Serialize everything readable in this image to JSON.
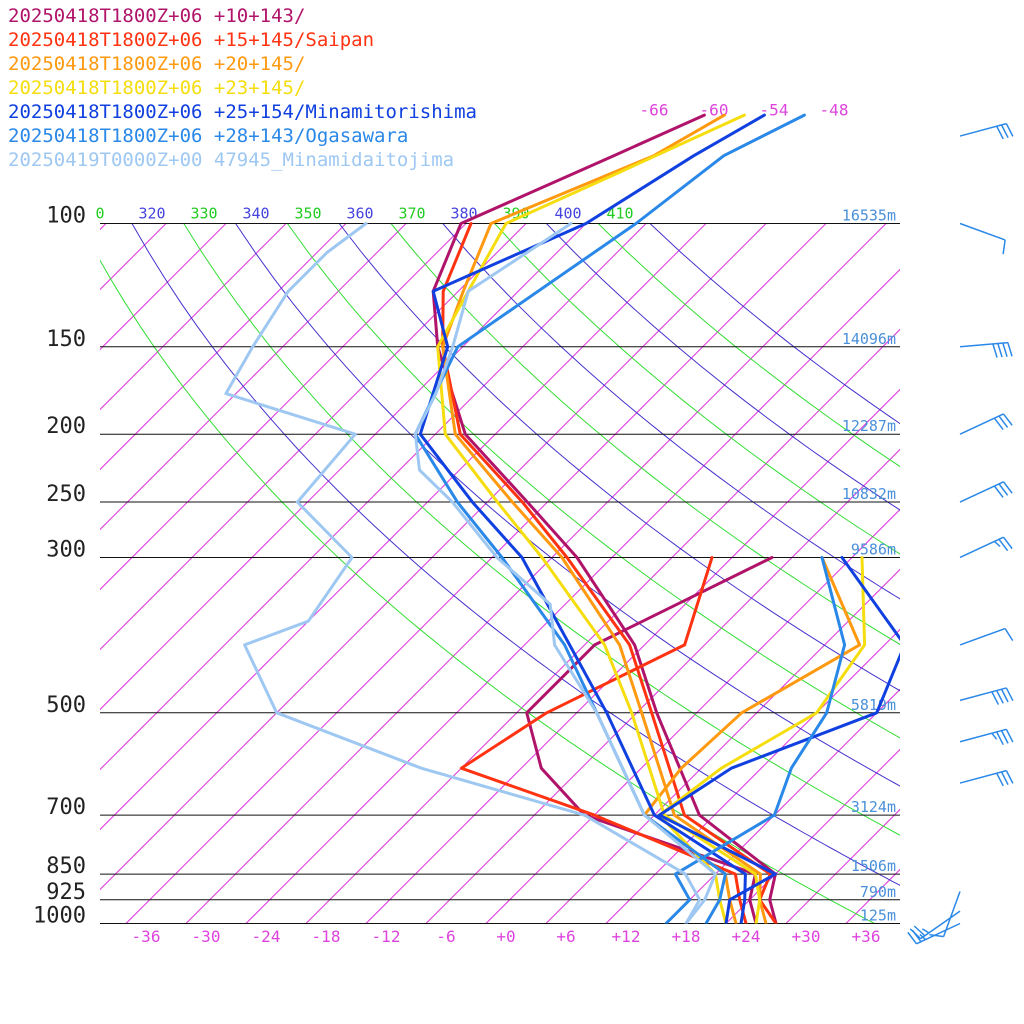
{
  "chart_data": {
    "type": "line",
    "subtype": "skew-T log-P sounding",
    "legend": [
      {
        "label": "20250418T1800Z+06 +10+143/",
        "color": "#b0146a"
      },
      {
        "label": "20250418T1800Z+06 +15+145/Saipan",
        "color": "#ff3311"
      },
      {
        "label": "20250418T1800Z+06 +20+145/",
        "color": "#ff9910"
      },
      {
        "label": "20250418T1800Z+06 +23+145/",
        "color": "#f5dd10"
      },
      {
        "label": "20250418T1800Z+06 +25+154/Minamitorishima",
        "color": "#1040e0"
      },
      {
        "label": "20250418T1800Z+06 +28+143/Ogasawara",
        "color": "#2a88e8"
      },
      {
        "label": "20250419T0000Z+00 47945_Minamidaitojima",
        "color": "#9ec8f2"
      }
    ],
    "pressure_levels": [
      {
        "p": 100,
        "label": "100",
        "height": "16535m"
      },
      {
        "p": 150,
        "label": "150",
        "height": "14096m"
      },
      {
        "p": 200,
        "label": "200",
        "height": "12287m"
      },
      {
        "p": 250,
        "label": "250",
        "height": "10832m"
      },
      {
        "p": 300,
        "label": "300",
        "height": "9586m"
      },
      {
        "p": 500,
        "label": "500",
        "height": "5819m"
      },
      {
        "p": 700,
        "label": "700",
        "height": "3124m"
      },
      {
        "p": 850,
        "label": "850",
        "height": "1506m"
      },
      {
        "p": 925,
        "label": "925",
        "height": "790m"
      },
      {
        "p": 1000,
        "label": "1000",
        "height": "125m"
      }
    ],
    "x_ticks": [
      "-36",
      "-30",
      "-24",
      "-18",
      "-12",
      "-6",
      "+0",
      "+6",
      "+12",
      "+18",
      "+24",
      "+30",
      "+36"
    ],
    "top_temp_labels": [
      "-66",
      "-60",
      "-54",
      "-48"
    ],
    "theta_labels": [
      {
        "text": "0",
        "color": "#22cc22"
      },
      {
        "text": "320",
        "color": "#4444dd"
      },
      {
        "text": "330",
        "color": "#22cc22"
      },
      {
        "text": "340",
        "color": "#4444dd"
      },
      {
        "text": "350",
        "color": "#22cc22"
      },
      {
        "text": "360",
        "color": "#4444dd"
      },
      {
        "text": "370",
        "color": "#22cc22"
      },
      {
        "text": "380",
        "color": "#4444dd"
      },
      {
        "text": "390",
        "color": "#22cc22"
      },
      {
        "text": "400",
        "color": "#4444dd"
      },
      {
        "text": "410",
        "color": "#22cc22"
      }
    ],
    "xlim": [
      -40,
      40
    ],
    "ylim_hPa": [
      1000,
      100
    ],
    "series": [
      {
        "legend": 0,
        "kind": "temperature",
        "points": [
          [
            1000,
            27
          ],
          [
            925,
            24
          ],
          [
            850,
            22
          ],
          [
            700,
            8.5
          ],
          [
            500,
            -6
          ],
          [
            400,
            -15
          ],
          [
            300,
            -29.5
          ],
          [
            250,
            -40
          ],
          [
            200,
            -53
          ],
          [
            150,
            -64.5
          ],
          [
            125,
            -70.5
          ],
          [
            100,
            -74.5
          ],
          [
            80,
            -66
          ],
          [
            70,
            -61
          ]
        ]
      },
      {
        "legend": 0,
        "kind": "dewpoint",
        "points": [
          [
            1000,
            25
          ],
          [
            925,
            22
          ],
          [
            850,
            20
          ],
          [
            700,
            -3
          ],
          [
            600,
            -12
          ],
          [
            500,
            -19
          ],
          [
            400,
            -19
          ],
          [
            300,
            -10
          ]
        ]
      },
      {
        "legend": 1,
        "kind": "temperature",
        "points": [
          [
            1000,
            27
          ],
          [
            925,
            23
          ],
          [
            850,
            21.5
          ],
          [
            700,
            7
          ],
          [
            500,
            -6.5
          ],
          [
            400,
            -15.5
          ],
          [
            300,
            -30.5
          ],
          [
            250,
            -40.5
          ],
          [
            200,
            -53.5
          ],
          [
            150,
            -64
          ],
          [
            125,
            -69.5
          ],
          [
            100,
            -73.5
          ]
        ]
      },
      {
        "legend": 1,
        "kind": "dewpoint",
        "points": [
          [
            1000,
            24
          ],
          [
            925,
            21
          ],
          [
            850,
            18
          ],
          [
            700,
            -2
          ],
          [
            600,
            -20
          ],
          [
            500,
            -17
          ],
          [
            400,
            -10
          ],
          [
            300,
            -16
          ]
        ]
      },
      {
        "legend": 2,
        "kind": "temperature",
        "points": [
          [
            1000,
            26
          ],
          [
            925,
            23
          ],
          [
            850,
            20.5
          ],
          [
            700,
            6
          ],
          [
            500,
            -7.5
          ],
          [
            400,
            -16.5
          ],
          [
            300,
            -31
          ],
          [
            250,
            -41.5
          ],
          [
            200,
            -54
          ],
          [
            150,
            -64
          ],
          [
            125,
            -67.5
          ],
          [
            100,
            -71.5
          ],
          [
            80,
            -62
          ],
          [
            70,
            -59
          ]
        ]
      },
      {
        "legend": 2,
        "kind": "dewpoint",
        "points": [
          [
            1000,
            23
          ],
          [
            925,
            20
          ],
          [
            850,
            17
          ],
          [
            700,
            3
          ],
          [
            600,
            2
          ],
          [
            500,
            2.5
          ],
          [
            400,
            7.5
          ],
          [
            300,
            -5
          ]
        ]
      },
      {
        "legend": 3,
        "kind": "temperature",
        "points": [
          [
            1000,
            25
          ],
          [
            925,
            23
          ],
          [
            850,
            20
          ],
          [
            700,
            5
          ],
          [
            500,
            -8.5
          ],
          [
            400,
            -18
          ],
          [
            300,
            -33
          ],
          [
            250,
            -43
          ],
          [
            200,
            -55
          ],
          [
            150,
            -64.5
          ],
          [
            125,
            -67
          ],
          [
            100,
            -70
          ],
          [
            85,
            -64
          ],
          [
            70,
            -57
          ]
        ]
      },
      {
        "legend": 3,
        "kind": "dewpoint",
        "points": [
          [
            1000,
            22
          ],
          [
            925,
            19
          ],
          [
            850,
            16
          ],
          [
            700,
            4.5
          ],
          [
            600,
            6
          ],
          [
            500,
            10
          ],
          [
            400,
            8
          ],
          [
            300,
            -1
          ]
        ]
      },
      {
        "legend": 4,
        "kind": "temperature",
        "points": [
          [
            1000,
            23.5
          ],
          [
            925,
            21.5
          ],
          [
            850,
            19
          ],
          [
            700,
            4
          ],
          [
            500,
            -11
          ],
          [
            400,
            -21.5
          ],
          [
            300,
            -35
          ],
          [
            250,
            -45.5
          ],
          [
            200,
            -57.5
          ],
          [
            150,
            -63.5
          ],
          [
            125,
            -70.5
          ],
          [
            100,
            -62
          ],
          [
            80,
            -58
          ],
          [
            70,
            -55
          ]
        ]
      },
      {
        "legend": 4,
        "kind": "dewpoint",
        "points": [
          [
            1000,
            22
          ],
          [
            925,
            20
          ],
          [
            850,
            22
          ],
          [
            700,
            4.5
          ],
          [
            600,
            7
          ],
          [
            500,
            16
          ],
          [
            400,
            12
          ],
          [
            300,
            -3
          ]
        ]
      },
      {
        "legend": 5,
        "kind": "temperature",
        "points": [
          [
            1000,
            20
          ],
          [
            925,
            19
          ],
          [
            850,
            17
          ],
          [
            700,
            3
          ],
          [
            500,
            -12
          ],
          [
            400,
            -22
          ],
          [
            300,
            -37
          ],
          [
            250,
            -47
          ],
          [
            200,
            -58
          ],
          [
            150,
            -62.5
          ],
          [
            100,
            -57
          ],
          [
            80,
            -55
          ],
          [
            70,
            -51
          ]
        ]
      },
      {
        "legend": 5,
        "kind": "dewpoint",
        "points": [
          [
            1000,
            16
          ],
          [
            925,
            16
          ],
          [
            850,
            12
          ],
          [
            700,
            16
          ],
          [
            600,
            13
          ],
          [
            500,
            11
          ],
          [
            400,
            6
          ],
          [
            300,
            -5
          ]
        ]
      },
      {
        "legend": 6,
        "kind": "temperature",
        "points": [
          [
            1000,
            18
          ],
          [
            925,
            17.5
          ],
          [
            850,
            16
          ],
          [
            700,
            3
          ],
          [
            500,
            -12
          ],
          [
            400,
            -23
          ],
          [
            350,
            -27.5
          ],
          [
            300,
            -37.5
          ],
          [
            250,
            -47.5
          ],
          [
            225,
            -54
          ],
          [
            200,
            -58
          ],
          [
            175,
            -60
          ],
          [
            150,
            -63
          ],
          [
            125,
            -67
          ],
          [
            110,
            -65
          ],
          [
            100,
            -63.5
          ]
        ]
      },
      {
        "legend": 6,
        "kind": "dewpoint",
        "points": [
          [
            1000,
            18
          ],
          [
            925,
            17
          ],
          [
            850,
            13
          ],
          [
            700,
            -3
          ],
          [
            600,
            -24
          ],
          [
            500,
            -44
          ],
          [
            400,
            -54
          ],
          [
            370,
            -50
          ],
          [
            300,
            -52
          ],
          [
            250,
            -63
          ],
          [
            200,
            -64
          ],
          [
            175,
            -81
          ],
          [
            150,
            -83
          ],
          [
            125,
            -85
          ],
          [
            110,
            -85
          ],
          [
            100,
            -84
          ]
        ]
      }
    ],
    "wind_barbs": [
      {
        "p": 1000,
        "dir_deg": 65,
        "kt": 25
      },
      {
        "p": 960,
        "dir_deg": 55,
        "kt": 25
      },
      {
        "p": 900,
        "dir_deg": 20,
        "kt": 10
      },
      {
        "p": 630,
        "dir_deg": 255,
        "kt": 30
      },
      {
        "p": 550,
        "dir_deg": 255,
        "kt": 35
      },
      {
        "p": 480,
        "dir_deg": 255,
        "kt": 40
      },
      {
        "p": 400,
        "dir_deg": 250,
        "kt": 10
      },
      {
        "p": 300,
        "dir_deg": 245,
        "kt": 25
      },
      {
        "p": 250,
        "dir_deg": 245,
        "kt": 30
      },
      {
        "p": 200,
        "dir_deg": 245,
        "kt": 30
      },
      {
        "p": 150,
        "dir_deg": 265,
        "kt": 40
      },
      {
        "p": 100,
        "dir_deg": 290,
        "kt": 10
      },
      {
        "p": 75,
        "dir_deg": 255,
        "kt": 30
      }
    ]
  }
}
